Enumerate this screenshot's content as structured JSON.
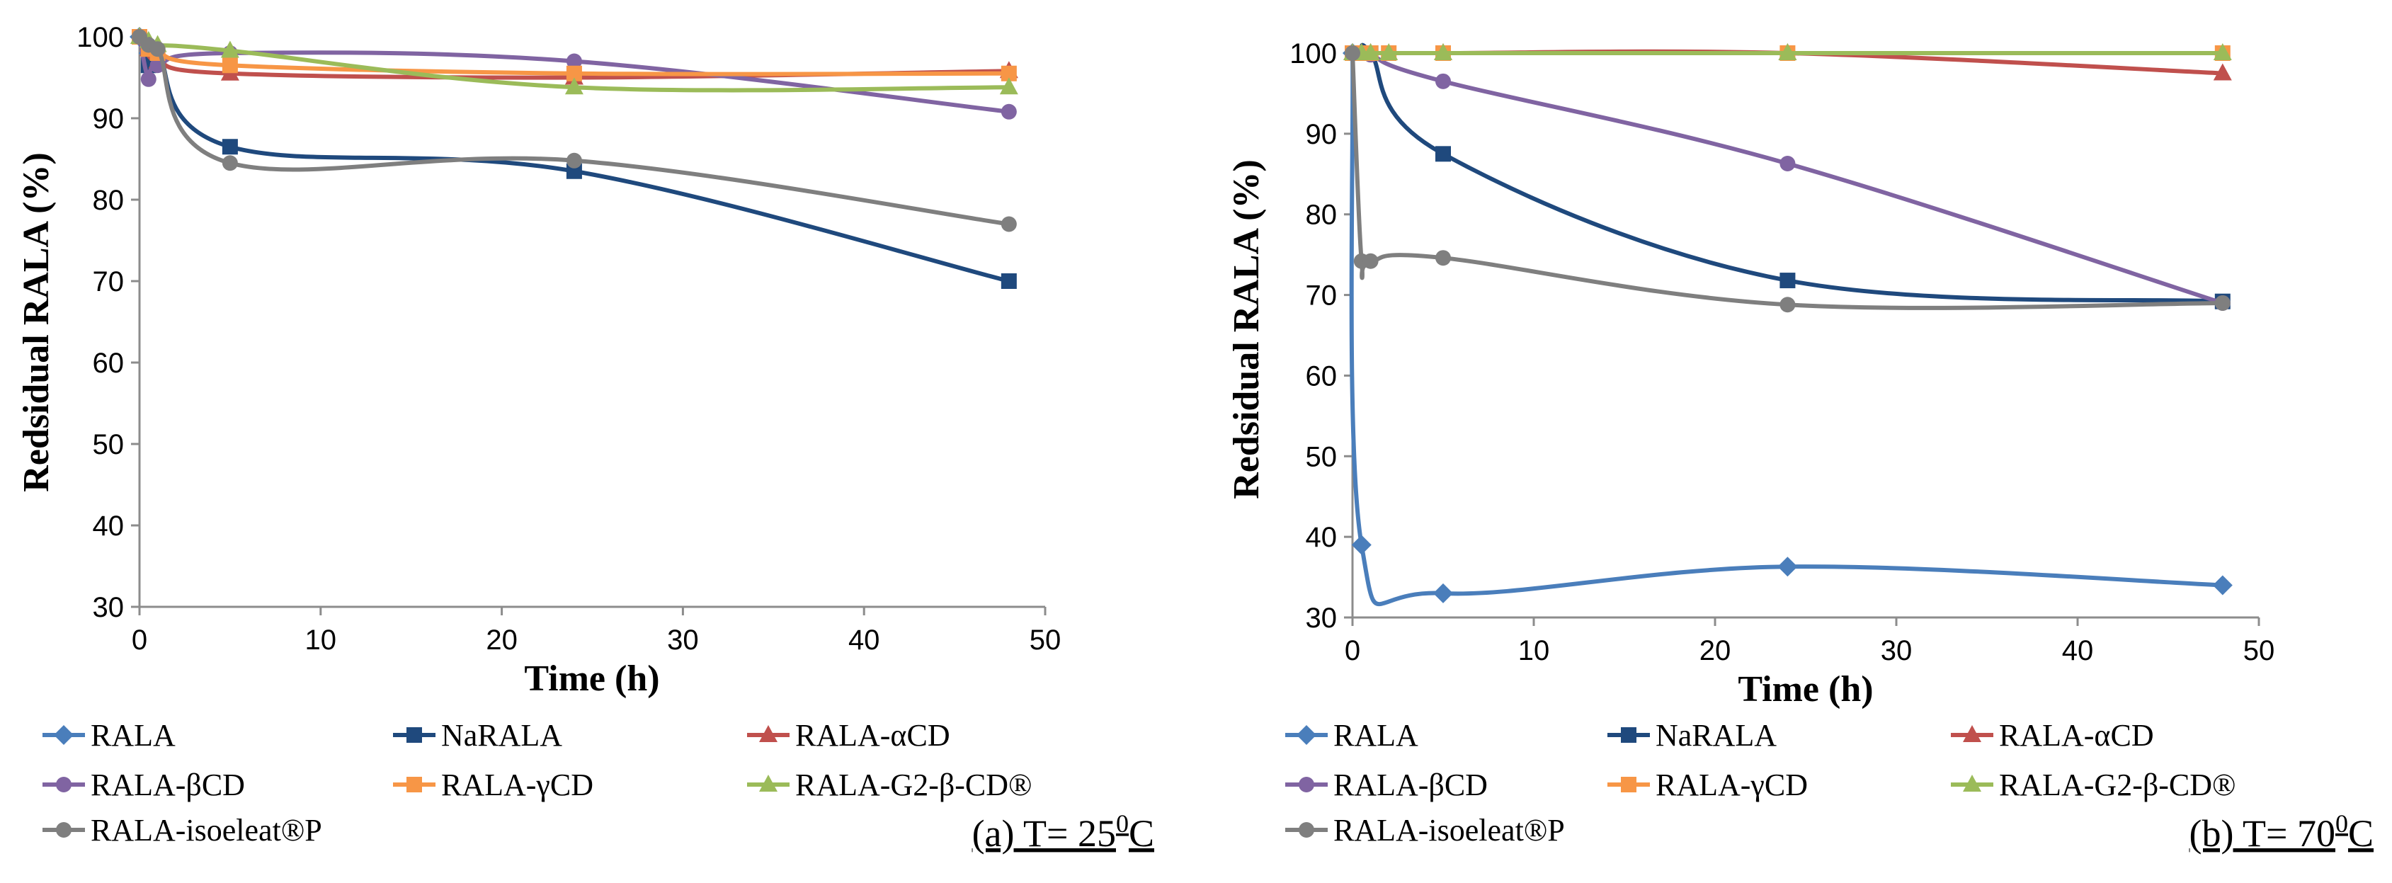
{
  "chart_data": [
    {
      "type": "line",
      "panel_caption": "(a) T= 25",
      "caption_superscript": "0",
      "caption_suffix": "C",
      "xlabel": "Time (h)",
      "ylabel": "Redsidual RALA (%)",
      "xlim": [
        0,
        50
      ],
      "ylim": [
        30,
        100
      ],
      "xticks": [
        0,
        10,
        20,
        30,
        40,
        50
      ],
      "yticks": [
        30,
        40,
        50,
        60,
        70,
        80,
        90,
        100
      ],
      "grid": false,
      "legend_position": "bottom",
      "series": [
        {
          "name": "RALA",
          "color": "#4a7ebb",
          "marker": "diamond",
          "x": [
            0,
            0.5,
            1
          ],
          "y": [
            100,
            98,
            97.5
          ]
        },
        {
          "name": "NaRALA",
          "color": "#1f497d",
          "marker": "square",
          "x": [
            0,
            0.5,
            1,
            5,
            24,
            48
          ],
          "y": [
            100,
            96.5,
            98,
            86.5,
            83.5,
            70
          ]
        },
        {
          "name": "RALA-αCD",
          "color": "#c0504d",
          "marker": "triangle",
          "x": [
            0,
            0.5,
            1,
            5,
            24,
            48
          ],
          "y": [
            100,
            98.5,
            97,
            95.5,
            95,
            95.8
          ]
        },
        {
          "name": "RALA-βCD",
          "color": "#8064a2",
          "marker": "circle",
          "x": [
            0,
            0.5,
            1,
            5,
            24,
            48
          ],
          "y": [
            100,
            94.8,
            96.5,
            98,
            97,
            90.8
          ]
        },
        {
          "name": "RALA-γCD",
          "color": "#f79646",
          "marker": "square",
          "x": [
            0,
            0.5,
            1,
            5,
            24,
            48
          ],
          "y": [
            100,
            98.5,
            98,
            96.5,
            95.5,
            95.5
          ]
        },
        {
          "name": "RALA-G2-β-CD®",
          "color": "#9bbb59",
          "marker": "triangle",
          "x": [
            0,
            0.5,
            1,
            5,
            24,
            48
          ],
          "y": [
            100,
            99.5,
            99,
            98.3,
            93.8,
            93.8
          ]
        },
        {
          "name": "RALA-isoeleat®P",
          "color": "#7f7f7f",
          "marker": "circle",
          "x": [
            0,
            0.5,
            1,
            5,
            24,
            48
          ],
          "y": [
            100,
            99,
            98.5,
            84.5,
            84.8,
            77
          ]
        }
      ]
    },
    {
      "type": "line",
      "panel_caption": "(b) T= 70",
      "caption_superscript": "0",
      "caption_suffix": "C",
      "xlabel": "Time (h)",
      "ylabel": "Redsidual RALA (%)",
      "xlim": [
        0,
        50
      ],
      "ylim": [
        30,
        100
      ],
      "xticks": [
        0,
        10,
        20,
        30,
        40,
        50
      ],
      "yticks": [
        30,
        40,
        50,
        60,
        70,
        80,
        90,
        100
      ],
      "grid": false,
      "legend_position": "bottom",
      "series": [
        {
          "name": "RALA",
          "color": "#4a7ebb",
          "marker": "diamond",
          "x": [
            0,
            0.5,
            5,
            24,
            48
          ],
          "y": [
            100,
            39,
            33,
            36.3,
            34
          ]
        },
        {
          "name": "NaRALA",
          "color": "#1f497d",
          "marker": "square",
          "x": [
            0,
            0.5,
            1,
            5,
            24,
            48
          ],
          "y": [
            100,
            100,
            100,
            87.5,
            71.8,
            69.2
          ]
        },
        {
          "name": "RALA-αCD",
          "color": "#c0504d",
          "marker": "triangle",
          "x": [
            0,
            0.5,
            1,
            5,
            24,
            48
          ],
          "y": [
            100,
            100,
            100,
            100,
            100,
            97.5
          ]
        },
        {
          "name": "RALA-βCD",
          "color": "#8064a2",
          "marker": "circle",
          "x": [
            0,
            0.5,
            1,
            5,
            24,
            48
          ],
          "y": [
            100,
            100,
            99.8,
            96.5,
            86.3,
            69
          ]
        },
        {
          "name": "RALA-γCD",
          "color": "#f79646",
          "marker": "square",
          "x": [
            0,
            0.5,
            1,
            2,
            5,
            24,
            48
          ],
          "y": [
            100,
            100,
            100,
            100,
            100,
            100,
            100
          ]
        },
        {
          "name": "RALA-G2-β-CD®",
          "color": "#9bbb59",
          "marker": "triangle",
          "x": [
            0,
            0.5,
            1,
            2,
            5,
            24,
            48
          ],
          "y": [
            100,
            100,
            100,
            100,
            100,
            100,
            100
          ]
        },
        {
          "name": "RALA-isoeleat®P",
          "color": "#7f7f7f",
          "marker": "circle",
          "x": [
            0,
            0.5,
            1,
            5,
            24,
            48
          ],
          "y": [
            100,
            74.2,
            74.2,
            74.6,
            68.8,
            69
          ]
        }
      ]
    }
  ]
}
